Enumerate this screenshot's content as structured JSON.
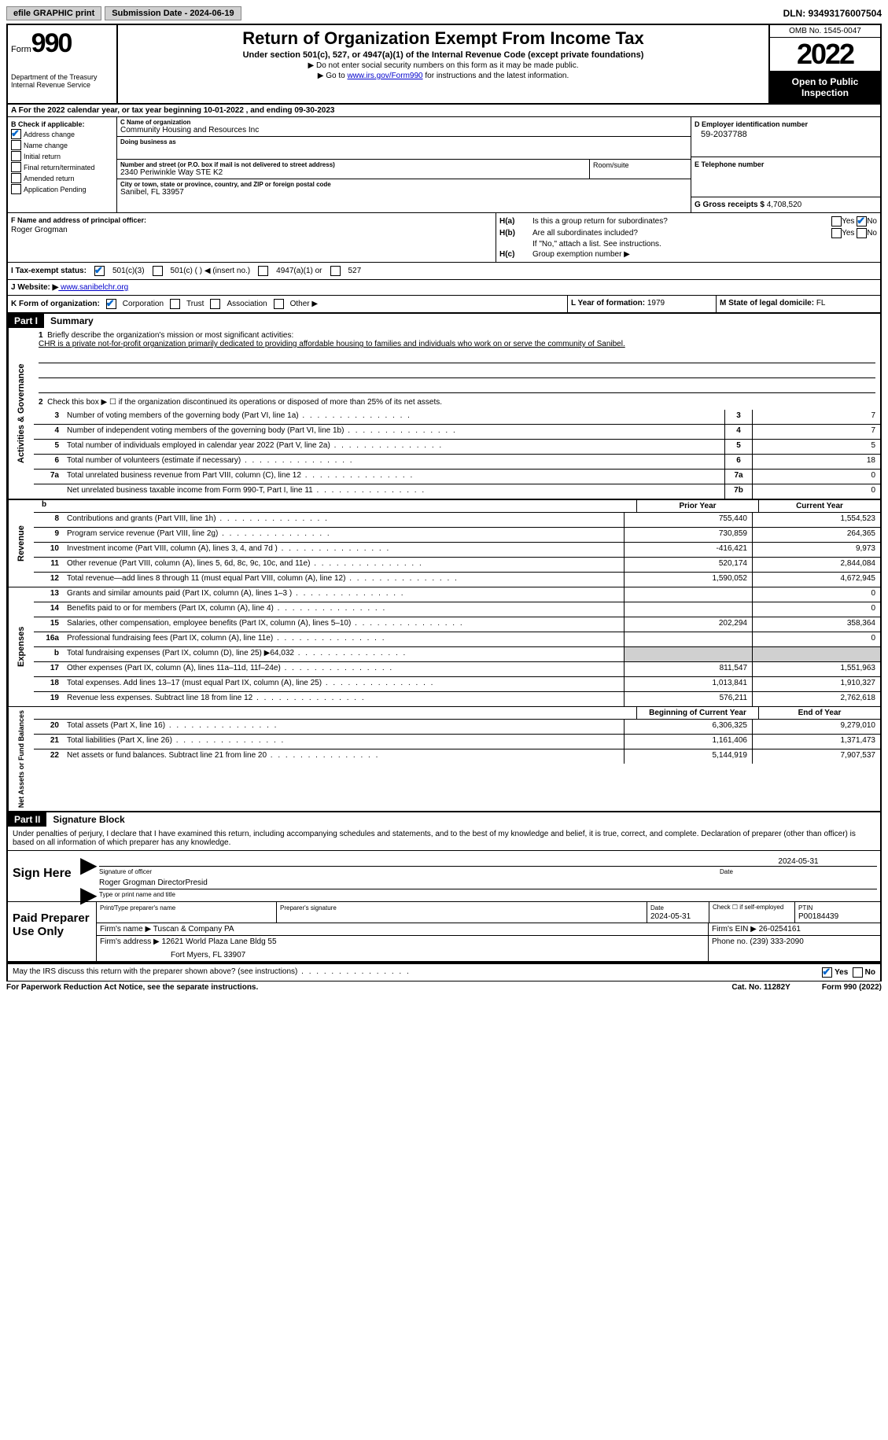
{
  "header_bar": {
    "efile": "efile GRAPHIC print",
    "submission": "Submission Date - 2024-06-19",
    "dln": "DLN: 93493176007504"
  },
  "form_header": {
    "form_label": "Form",
    "form_number": "990",
    "dept": "Department of the Treasury",
    "irs": "Internal Revenue Service",
    "title": "Return of Organization Exempt From Income Tax",
    "subtitle": "Under section 501(c), 527, or 4947(a)(1) of the Internal Revenue Code (except private foundations)",
    "note1": "▶ Do not enter social security numbers on this form as it may be made public.",
    "note2_pre": "▶ Go to ",
    "note2_link": "www.irs.gov/Form990",
    "note2_post": " for instructions and the latest information.",
    "omb": "OMB No. 1545-0047",
    "year": "2022",
    "inspect": "Open to Public Inspection"
  },
  "line_a": "A For the 2022 calendar year, or tax year beginning 10-01-2022    , and ending 09-30-2023",
  "section_b": {
    "label": "B Check if applicable:",
    "opts": [
      "Address change",
      "Name change",
      "Initial return",
      "Final return/terminated",
      "Amended return",
      "Application Pending"
    ],
    "checked_idx": 0
  },
  "section_c": {
    "name_lbl": "C Name of organization",
    "name": "Community Housing and Resources Inc",
    "dba_lbl": "Doing business as",
    "addr_lbl": "Number and street (or P.O. box if mail is not delivered to street address)",
    "addr": "2340 Periwinkle Way STE K2",
    "room_lbl": "Room/suite",
    "city_lbl": "City or town, state or province, country, and ZIP or foreign postal code",
    "city": "Sanibel, FL  33957"
  },
  "section_d": {
    "ein_lbl": "D Employer identification number",
    "ein": "59-2037788",
    "phone_lbl": "E Telephone number",
    "gross_lbl": "G Gross receipts $",
    "gross": "4,708,520"
  },
  "section_f": {
    "lbl": "F  Name and address of principal officer:",
    "name": "Roger Grogman"
  },
  "section_h": {
    "ha": "Is this a group return for subordinates?",
    "hb": "Are all subordinates included?",
    "hb_note": "If \"No,\" attach a list. See instructions.",
    "hc": "Group exemption number ▶",
    "yes": "Yes",
    "no": "No"
  },
  "row_i": {
    "lbl": "I   Tax-exempt status:",
    "o1": "501(c)(3)",
    "o2": "501(c) (  ) ◀ (insert no.)",
    "o3": "4947(a)(1) or",
    "o4": "527"
  },
  "row_j": {
    "lbl": "J   Website: ▶",
    "url": " www.sanibelchr.org"
  },
  "row_k": {
    "lbl": "K Form of organization:",
    "opts": [
      "Corporation",
      "Trust",
      "Association",
      "Other ▶"
    ],
    "l_lbl": "L Year of formation:",
    "l_val": "1979",
    "m_lbl": "M State of legal domicile:",
    "m_val": "FL"
  },
  "part1": {
    "num": "Part I",
    "title": "Summary"
  },
  "summary": {
    "line1_lbl": "Briefly describe the organization's mission or most significant activities:",
    "mission": "CHR is a private not-for-profit organization primarily dedicated to providing affordable housing to families and individuals who work on or serve the community of Sanibel.",
    "line2": "Check this box ▶ ☐ if the organization discontinued its operations or disposed of more than 25% of its net assets.",
    "governance": [
      {
        "n": "3",
        "d": "Number of voting members of the governing body (Part VI, line 1a)",
        "b": "3",
        "v": "7"
      },
      {
        "n": "4",
        "d": "Number of independent voting members of the governing body (Part VI, line 1b)",
        "b": "4",
        "v": "7"
      },
      {
        "n": "5",
        "d": "Total number of individuals employed in calendar year 2022 (Part V, line 2a)",
        "b": "5",
        "v": "5"
      },
      {
        "n": "6",
        "d": "Total number of volunteers (estimate if necessary)",
        "b": "6",
        "v": "18"
      },
      {
        "n": "7a",
        "d": "Total unrelated business revenue from Part VIII, column (C), line 12",
        "b": "7a",
        "v": "0"
      },
      {
        "n": "",
        "d": "Net unrelated business taxable income from Form 990-T, Part I, line 11",
        "b": "7b",
        "v": "0"
      }
    ],
    "col_prior": "Prior Year",
    "col_current": "Current Year",
    "revenue": [
      {
        "n": "8",
        "d": "Contributions and grants (Part VIII, line 1h)",
        "p": "755,440",
        "c": "1,554,523"
      },
      {
        "n": "9",
        "d": "Program service revenue (Part VIII, line 2g)",
        "p": "730,859",
        "c": "264,365"
      },
      {
        "n": "10",
        "d": "Investment income (Part VIII, column (A), lines 3, 4, and 7d )",
        "p": "-416,421",
        "c": "9,973"
      },
      {
        "n": "11",
        "d": "Other revenue (Part VIII, column (A), lines 5, 6d, 8c, 9c, 10c, and 11e)",
        "p": "520,174",
        "c": "2,844,084"
      },
      {
        "n": "12",
        "d": "Total revenue—add lines 8 through 11 (must equal Part VIII, column (A), line 12)",
        "p": "1,590,052",
        "c": "4,672,945"
      }
    ],
    "expenses": [
      {
        "n": "13",
        "d": "Grants and similar amounts paid (Part IX, column (A), lines 1–3 )",
        "p": "",
        "c": "0"
      },
      {
        "n": "14",
        "d": "Benefits paid to or for members (Part IX, column (A), line 4)",
        "p": "",
        "c": "0"
      },
      {
        "n": "15",
        "d": "Salaries, other compensation, employee benefits (Part IX, column (A), lines 5–10)",
        "p": "202,294",
        "c": "358,364"
      },
      {
        "n": "16a",
        "d": "Professional fundraising fees (Part IX, column (A), line 11e)",
        "p": "",
        "c": "0"
      },
      {
        "n": "b",
        "d": "Total fundraising expenses (Part IX, column (D), line 25) ▶64,032",
        "p": "shade",
        "c": "shade"
      },
      {
        "n": "17",
        "d": "Other expenses (Part IX, column (A), lines 11a–11d, 11f–24e)",
        "p": "811,547",
        "c": "1,551,963"
      },
      {
        "n": "18",
        "d": "Total expenses. Add lines 13–17 (must equal Part IX, column (A), line 25)",
        "p": "1,013,841",
        "c": "1,910,327"
      },
      {
        "n": "19",
        "d": "Revenue less expenses. Subtract line 18 from line 12",
        "p": "576,211",
        "c": "2,762,618"
      }
    ],
    "col_begin": "Beginning of Current Year",
    "col_end": "End of Year",
    "netassets": [
      {
        "n": "20",
        "d": "Total assets (Part X, line 16)",
        "p": "6,306,325",
        "c": "9,279,010"
      },
      {
        "n": "21",
        "d": "Total liabilities (Part X, line 26)",
        "p": "1,161,406",
        "c": "1,371,473"
      },
      {
        "n": "22",
        "d": "Net assets or fund balances. Subtract line 21 from line 20",
        "p": "5,144,919",
        "c": "7,907,537"
      }
    ],
    "vert_gov": "Activities & Governance",
    "vert_rev": "Revenue",
    "vert_exp": "Expenses",
    "vert_net": "Net Assets or Fund Balances"
  },
  "part2": {
    "num": "Part II",
    "title": "Signature Block"
  },
  "sig": {
    "penalties": "Under penalties of perjury, I declare that I have examined this return, including accompanying schedules and statements, and to the best of my knowledge and belief, it is true, correct, and complete. Declaration of preparer (other than officer) is based on all information of which preparer has any knowledge.",
    "sign_here": "Sign Here",
    "sig_officer_lbl": "Signature of officer",
    "date_lbl": "Date",
    "date": "2024-05-31",
    "name": "Roger Grogman  DirectorPresid",
    "name_lbl": "Type or print name and title"
  },
  "preparer": {
    "label": "Paid Preparer Use Only",
    "name_lbl": "Print/Type preparer's name",
    "sig_lbl": "Preparer's signature",
    "date_lbl": "Date",
    "date": "2024-05-31",
    "check_lbl": "Check ☐ if self-employed",
    "ptin_lbl": "PTIN",
    "ptin": "P00184439",
    "firm_name_lbl": "Firm's name   ▶",
    "firm_name": "Tuscan & Company PA",
    "firm_ein_lbl": "Firm's EIN ▶",
    "firm_ein": "26-0254161",
    "firm_addr_lbl": "Firm's address ▶",
    "firm_addr1": "12621 World Plaza Lane Bldg 55",
    "firm_addr2": "Fort Myers, FL  33907",
    "phone_lbl": "Phone no.",
    "phone": "(239) 333-2090"
  },
  "bottom": {
    "q": "May the IRS discuss this return with the preparer shown above? (see instructions)",
    "yes": "Yes",
    "no": "No"
  },
  "footer": {
    "l": "For Paperwork Reduction Act Notice, see the separate instructions.",
    "c": "Cat. No. 11282Y",
    "r": "Form 990 (2022)"
  }
}
